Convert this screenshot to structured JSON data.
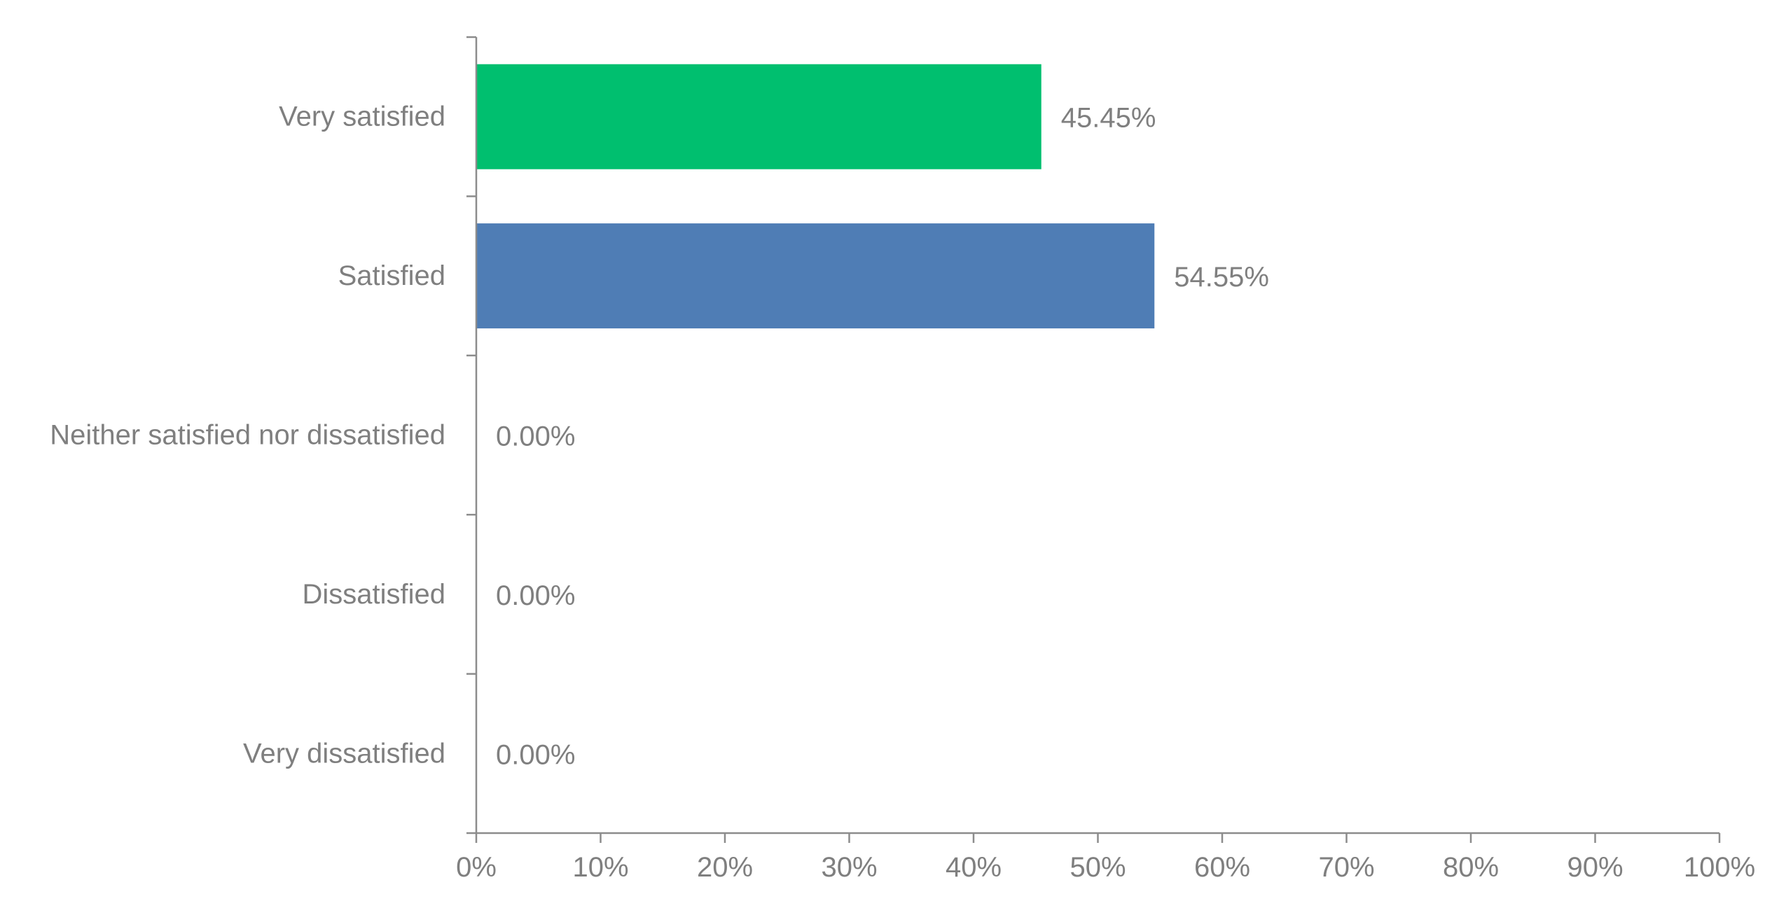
{
  "chart_data": {
    "type": "bar",
    "orientation": "horizontal",
    "title": "",
    "xlabel": "",
    "ylabel": "",
    "categories": [
      "Very satisfied",
      "Satisfied",
      "Neither satisfied nor dissatisfied",
      "Dissatisfied",
      "Very dissatisfied"
    ],
    "values": [
      45.45,
      54.55,
      0,
      0,
      0
    ],
    "data_labels": [
      "45.45%",
      "54.55%",
      "0.00%",
      "0.00%",
      "0.00%"
    ],
    "bar_colors": [
      "#00bf6f",
      "#4f7db5",
      "#4f7db5",
      "#4f7db5",
      "#4f7db5"
    ],
    "xlim": [
      0,
      100
    ],
    "x_ticks": [
      "0%",
      "10%",
      "20%",
      "30%",
      "40%",
      "50%",
      "60%",
      "70%",
      "80%",
      "90%",
      "100%"
    ],
    "grid": false,
    "legend": "none"
  }
}
